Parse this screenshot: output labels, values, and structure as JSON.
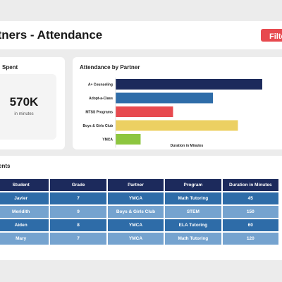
{
  "header": {
    "title": "rtners - Attendance",
    "filter_label": "Filte"
  },
  "kpi": {
    "title": "Spent",
    "value": "570K",
    "unit": "in minutes"
  },
  "chart_card": {
    "title": "Attendance by Partner"
  },
  "table_card": {
    "title": "ents"
  },
  "table": {
    "headers": [
      "Student",
      "Grade",
      "Partner",
      "Program",
      "Duration in Minutes"
    ],
    "rows": [
      [
        "Javier",
        "7",
        "YMCA",
        "Math Tutoring",
        "45"
      ],
      [
        "Meridith",
        "9",
        "Boys & Girls Club",
        "STEM",
        "150"
      ],
      [
        "Aiden",
        "8",
        "YMCA",
        "ELA Tutoring",
        "60"
      ],
      [
        "Mary",
        "7",
        "YMCA",
        "Math Tutoring",
        "120"
      ]
    ]
  },
  "chart_data": {
    "type": "bar",
    "orientation": "horizontal",
    "title": "Attendance by Partner",
    "xlabel": "Duration in Minutes",
    "ylabel": "",
    "categories": [
      "A+ Counseling",
      "Adopt-a-Class",
      "MTSS Programs",
      "Boys & Girls Club",
      "YMCA"
    ],
    "values": [
      217,
      144,
      85,
      181,
      37
    ],
    "colors": [
      "#1c2a5c",
      "#2e6ca8",
      "#e74a4f",
      "#ecd062",
      "#8dc63f"
    ],
    "xlim": [
      0,
      240
    ],
    "grid": false,
    "legend": "none"
  }
}
